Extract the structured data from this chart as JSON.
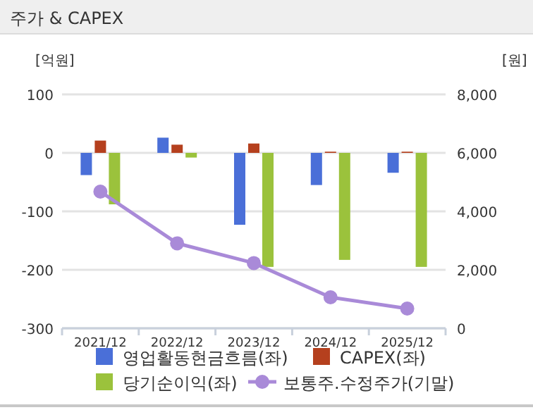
{
  "chart_data": {
    "type": "bar",
    "title": "주가 & CAPEX",
    "ylabel": "[억원]",
    "y2label": "[원]",
    "categories": [
      "2021/12",
      "2022/12",
      "2023/12",
      "2024/12",
      "2025/12"
    ],
    "series": [
      {
        "name": "영업활동현금흐름(좌)",
        "color": "#4a6fd8",
        "values": [
          -38,
          26,
          -123,
          -55,
          -34
        ]
      },
      {
        "name": "CAPEX(좌)",
        "color": "#b5401e",
        "values": [
          21,
          14,
          16,
          2,
          2
        ]
      },
      {
        "name": "당기순이익(좌)",
        "color": "#9bc23c",
        "values": [
          -88,
          -8,
          -195,
          -183,
          -195
        ]
      },
      {
        "name": "보통주.수정주가(기말)",
        "color": "#a98ad8",
        "type": "line",
        "axis": "y2",
        "marker": "circle",
        "values": [
          4675,
          2906,
          2231,
          1060,
          675
        ]
      }
    ],
    "ylim": [
      -300,
      100
    ],
    "yticks": [
      -300,
      -200,
      -100,
      0,
      100
    ],
    "y2lim": [
      0,
      8000
    ],
    "y2ticks": [
      {
        "value": 0,
        "label": "0"
      },
      {
        "value": 2000,
        "label": "2,000"
      },
      {
        "value": 4000,
        "label": "4,000"
      },
      {
        "value": 6000,
        "label": "6,000"
      },
      {
        "value": 8000,
        "label": "8,000"
      }
    ],
    "grid": "y",
    "legend": "bottom"
  }
}
